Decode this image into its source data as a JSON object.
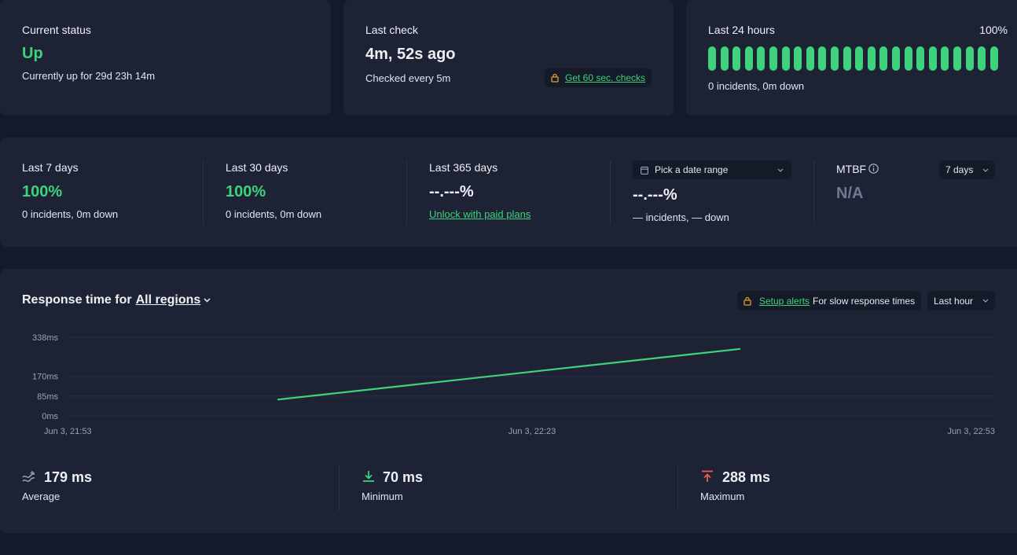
{
  "current_status": {
    "label": "Current status",
    "value": "Up",
    "detail": "Currently up for 29d 23h 14m"
  },
  "last_check": {
    "label": "Last check",
    "value": "4m, 52s ago",
    "detail": "Checked every 5m",
    "upsell": "Get 60 sec. checks"
  },
  "last_24h": {
    "label": "Last 24 hours",
    "percent": "100%",
    "detail": "0 incidents, 0m down",
    "bar_count": 24,
    "bar_color": "#3ed37a"
  },
  "periods": [
    {
      "label": "Last 7 days",
      "value": "100%",
      "detail": "0 incidents, 0m down"
    },
    {
      "label": "Last 30 days",
      "value": "100%",
      "detail": "0 incidents, 0m down"
    },
    {
      "label": "Last 365 days",
      "value": "--.---%",
      "detail": "Unlock with paid plans"
    }
  ],
  "date_range": {
    "placeholder": "Pick a date range",
    "value": "--.---%",
    "detail": "— incidents, — down"
  },
  "mtbf": {
    "label": "MTBF",
    "value": "N/A",
    "range": "7 days"
  },
  "response": {
    "title_prefix": "Response time for",
    "region": "All regions",
    "alert_link": "Setup alerts",
    "alert_text": "For slow response times",
    "range": "Last hour"
  },
  "chart_data": {
    "type": "line",
    "x": [
      "Jun 3, 21:53",
      "Jun 3, 22:23",
      "Jun 3, 22:53"
    ],
    "y_ticks": [
      "338ms",
      "170ms",
      "85ms",
      "0ms"
    ],
    "series": [
      {
        "values": [
          [
            0.225,
            70
          ],
          [
            0.725,
            288
          ]
        ]
      }
    ],
    "ylim": [
      0,
      338
    ],
    "color": "#3ed37a"
  },
  "stats": [
    {
      "value": "179 ms",
      "label": "Average"
    },
    {
      "value": "70 ms",
      "label": "Minimum"
    },
    {
      "value": "288 ms",
      "label": "Maximum"
    }
  ]
}
